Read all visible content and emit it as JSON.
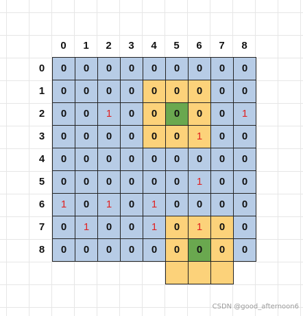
{
  "grid": {
    "column_labels": [
      "0",
      "1",
      "2",
      "3",
      "4",
      "5",
      "6",
      "7",
      "8"
    ],
    "row_labels": [
      "0",
      "1",
      "2",
      "3",
      "4",
      "5",
      "6",
      "7",
      "8"
    ],
    "values": [
      [
        "0",
        "0",
        "0",
        "0",
        "0",
        "0",
        "0",
        "0",
        "0"
      ],
      [
        "0",
        "0",
        "0",
        "0",
        "0",
        "0",
        "0",
        "0",
        "0"
      ],
      [
        "0",
        "0",
        "1",
        "0",
        "0",
        "0",
        "0",
        "0",
        "1"
      ],
      [
        "0",
        "0",
        "0",
        "0",
        "0",
        "0",
        "1",
        "0",
        "0"
      ],
      [
        "0",
        "0",
        "0",
        "0",
        "0",
        "0",
        "0",
        "0",
        "0"
      ],
      [
        "0",
        "0",
        "0",
        "0",
        "0",
        "0",
        "1",
        "0",
        "0"
      ],
      [
        "1",
        "0",
        "1",
        "0",
        "1",
        "0",
        "0",
        "0",
        "0"
      ],
      [
        "0",
        "1",
        "0",
        "0",
        "1",
        "0",
        "1",
        "0",
        "0"
      ],
      [
        "0",
        "0",
        "0",
        "0",
        "0",
        "0",
        "0",
        "0",
        "0"
      ]
    ],
    "highlight": [
      [
        "blue",
        "blue",
        "blue",
        "blue",
        "blue",
        "blue",
        "blue",
        "blue",
        "blue"
      ],
      [
        "blue",
        "blue",
        "blue",
        "blue",
        "yellow",
        "yellow",
        "yellow",
        "blue",
        "blue"
      ],
      [
        "blue",
        "blue",
        "blue",
        "blue",
        "yellow",
        "green",
        "yellow",
        "blue",
        "blue"
      ],
      [
        "blue",
        "blue",
        "blue",
        "blue",
        "yellow",
        "yellow",
        "yellow",
        "blue",
        "blue"
      ],
      [
        "blue",
        "blue",
        "blue",
        "blue",
        "blue",
        "blue",
        "blue",
        "blue",
        "blue"
      ],
      [
        "blue",
        "blue",
        "blue",
        "blue",
        "blue",
        "blue",
        "blue",
        "blue",
        "blue"
      ],
      [
        "blue",
        "blue",
        "blue",
        "blue",
        "blue",
        "blue",
        "blue",
        "blue",
        "blue"
      ],
      [
        "blue",
        "blue",
        "blue",
        "blue",
        "blue",
        "yellow",
        "yellow",
        "yellow",
        "blue"
      ],
      [
        "blue",
        "blue",
        "blue",
        "blue",
        "blue",
        "yellow",
        "green",
        "yellow",
        "blue"
      ]
    ],
    "extra_row_highlight": [
      "none",
      "none",
      "none",
      "none",
      "none",
      "yellow",
      "yellow",
      "yellow",
      "none"
    ]
  },
  "colors": {
    "blue": "#b7cce6",
    "yellow": "#fcd27a",
    "green": "#6aa84f",
    "one_text": "#e02020",
    "zero_text": "#111111"
  },
  "watermark": "CSDN @good_afternoon6"
}
